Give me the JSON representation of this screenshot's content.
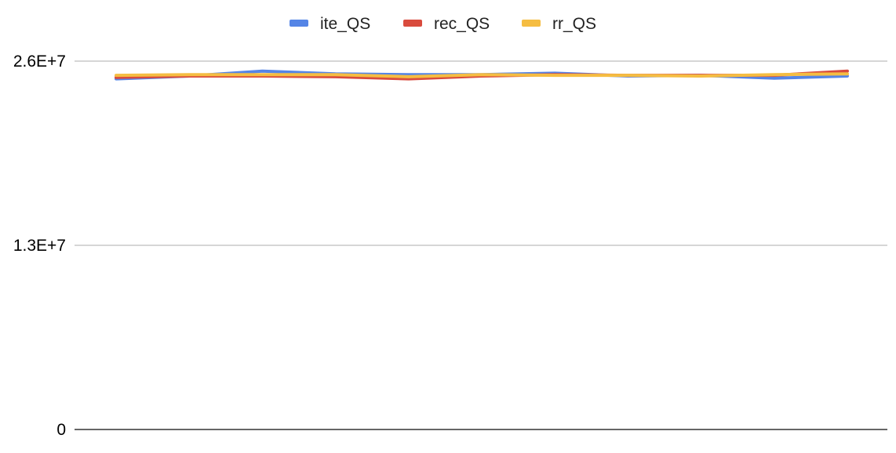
{
  "chart_data": {
    "type": "line",
    "legend_position": "top",
    "grid": true,
    "ylim": [
      0,
      26000000
    ],
    "yticks": [
      {
        "value": 0,
        "label": "0"
      },
      {
        "value": 13000000,
        "label": "1.3E+7"
      },
      {
        "value": 26000000,
        "label": "2.6E+7"
      }
    ],
    "x": [
      1,
      2,
      3,
      4,
      5,
      6,
      7,
      8,
      9,
      10,
      11
    ],
    "series": [
      {
        "name": "ite_QS",
        "color": "#5585e6",
        "values": [
          24750000,
          24950000,
          25300000,
          25100000,
          25050000,
          25050000,
          25150000,
          24950000,
          25000000,
          24800000,
          24950000
        ]
      },
      {
        "name": "rec_QS",
        "color": "#d94b3d",
        "values": [
          24850000,
          24950000,
          24950000,
          24900000,
          24750000,
          24950000,
          25050000,
          25000000,
          25000000,
          25000000,
          25300000
        ]
      },
      {
        "name": "rr_QS",
        "color": "#f5bd42",
        "values": [
          25000000,
          25050000,
          25050000,
          25050000,
          24900000,
          25050000,
          25000000,
          25000000,
          24950000,
          25050000,
          25100000
        ]
      }
    ]
  }
}
